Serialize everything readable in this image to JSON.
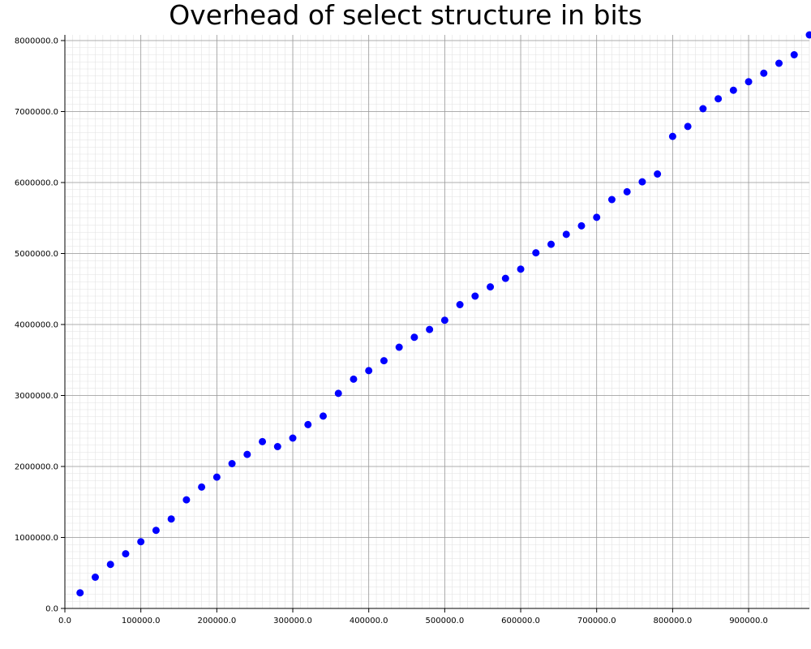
{
  "chart_data": {
    "type": "scatter",
    "title": "Overhead of select structure in bits",
    "xlabel": "",
    "ylabel": "",
    "xlim": [
      0,
      980000
    ],
    "ylim": [
      0,
      8080000
    ],
    "grid": true,
    "marker_color": "#0000ff",
    "x_ticks": [
      0,
      100000,
      200000,
      300000,
      400000,
      500000,
      600000,
      700000,
      800000,
      900000
    ],
    "x_tick_labels": [
      "0.0",
      "100000.0",
      "200000.0",
      "300000.0",
      "400000.0",
      "500000.0",
      "600000.0",
      "700000.0",
      "800000.0",
      "900000.0"
    ],
    "y_ticks": [
      0,
      1000000,
      2000000,
      3000000,
      4000000,
      5000000,
      6000000,
      7000000,
      8000000
    ],
    "y_tick_labels": [
      "0.0",
      "1000000.0",
      "2000000.0",
      "3000000.0",
      "4000000.0",
      "5000000.0",
      "6000000.0",
      "7000000.0",
      "8000000.0"
    ],
    "x": [
      20000,
      40000,
      60000,
      80000,
      100000,
      120000,
      140000,
      160000,
      180000,
      200000,
      220000,
      240000,
      260000,
      280000,
      300000,
      320000,
      340000,
      360000,
      380000,
      400000,
      420000,
      440000,
      460000,
      480000,
      500000,
      520000,
      540000,
      560000,
      580000,
      600000,
      620000,
      640000,
      660000,
      680000,
      700000,
      720000,
      740000,
      760000,
      780000,
      800000,
      820000,
      840000,
      860000,
      880000,
      900000,
      920000,
      940000,
      960000,
      980000
    ],
    "y": [
      220000,
      440000,
      620000,
      770000,
      940000,
      1100000,
      1260000,
      1530000,
      1710000,
      1850000,
      2040000,
      2170000,
      2350000,
      2280000,
      2400000,
      2590000,
      2710000,
      3030000,
      3230000,
      3350000,
      3490000,
      3680000,
      3820000,
      3930000,
      4060000,
      4280000,
      4400000,
      4530000,
      4650000,
      4780000,
      5010000,
      5130000,
      5270000,
      5390000,
      5510000,
      5760000,
      5870000,
      6010000,
      6120000,
      6650000,
      6790000,
      7040000,
      7180000,
      7300000,
      7420000,
      7540000,
      7680000,
      7800000,
      8080000
    ]
  }
}
